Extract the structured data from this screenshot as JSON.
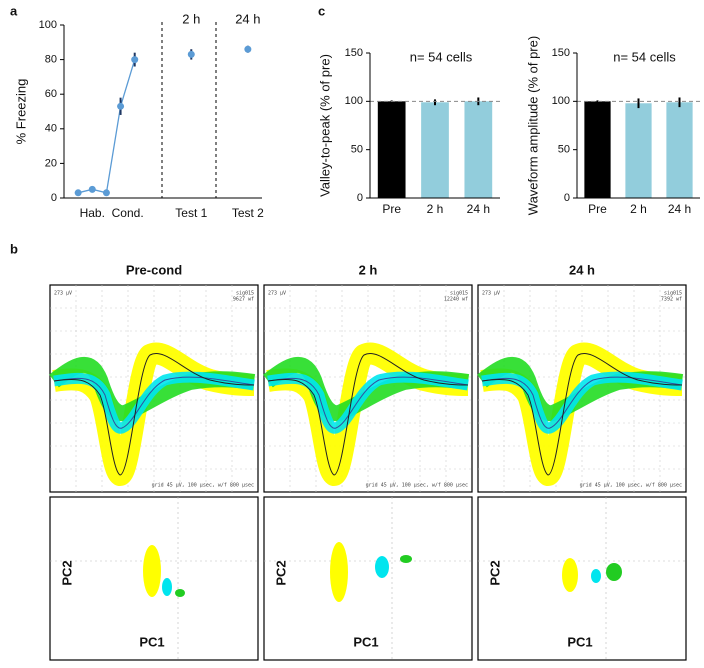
{
  "panel_labels": [
    "a",
    "b",
    "c"
  ],
  "chart_data": [
    {
      "type": "line",
      "ylabel": "% Freezing",
      "ylim": [
        0,
        100
      ],
      "yticks": [
        0,
        20,
        40,
        60,
        80,
        100
      ],
      "xlim": [
        0,
        14
      ],
      "xticks": [
        {
          "value": 2,
          "label": "Hab."
        },
        {
          "value": 4.5,
          "label": "Cond."
        },
        {
          "value": 9,
          "label": "Test 1"
        },
        {
          "value": 13,
          "label": "Test 2"
        }
      ],
      "annotations": [
        "2 h",
        "24 h"
      ],
      "series": [
        {
          "color": "#5b9bd5",
          "line": true,
          "x": [
            1,
            2,
            3,
            4,
            5
          ],
          "values": [
            3,
            5,
            3,
            53,
            80
          ],
          "errors": [
            1,
            1,
            1,
            5,
            4
          ]
        },
        {
          "color": "#5b9bd5",
          "line": false,
          "x": [
            9,
            13
          ],
          "values": [
            83,
            86
          ],
          "errors": [
            3,
            2
          ]
        }
      ]
    },
    {
      "type": "bar",
      "ylabel": "Valley-to-peak (% of pre)",
      "annotation": "n= 54 cells",
      "categories": [
        "Pre",
        "2 h",
        "24 h"
      ],
      "values": [
        100,
        99,
        100
      ],
      "errors": [
        1,
        3,
        4
      ],
      "colors": [
        "#000000",
        "#92cddc",
        "#92cddc"
      ],
      "reference_line": 100,
      "ylim": [
        0,
        150
      ],
      "yticks": [
        0,
        50,
        100,
        150
      ]
    },
    {
      "type": "bar",
      "ylabel": "Waveform amplitude (% of pre)",
      "annotation": "n= 54 cells",
      "categories": [
        "Pre",
        "2 h",
        "24 h"
      ],
      "values": [
        100,
        98,
        99
      ],
      "errors": [
        1,
        5,
        5
      ],
      "colors": [
        "#000000",
        "#92cddc",
        "#92cddc"
      ],
      "reference_line": 100,
      "ylim": [
        0,
        150
      ],
      "yticks": [
        0,
        50,
        100,
        150
      ]
    }
  ],
  "waveforms": {
    "columns": [
      {
        "title": "Pre-cond",
        "scale": "273 μV",
        "channel": "sig015",
        "count": "9627 wf",
        "grid": "grid 45 μV, 100 μsec, w/f 800 μsec",
        "x_label": "PC1",
        "y_label": "PC2"
      },
      {
        "title": "2 h",
        "scale": "273 μV",
        "channel": "sig015",
        "count": "12240 wf",
        "grid": "grid 45 μV, 100 μsec, w/f 800 μsec",
        "x_label": "PC1",
        "y_label": "PC2"
      },
      {
        "title": "24 h",
        "scale": "273 μV",
        "channel": "sig015",
        "count": "7392 wf",
        "grid": "grid 45 μV, 100 μsec, w/f 800 μsec",
        "x_label": "PC1",
        "y_label": "PC2"
      }
    ]
  }
}
